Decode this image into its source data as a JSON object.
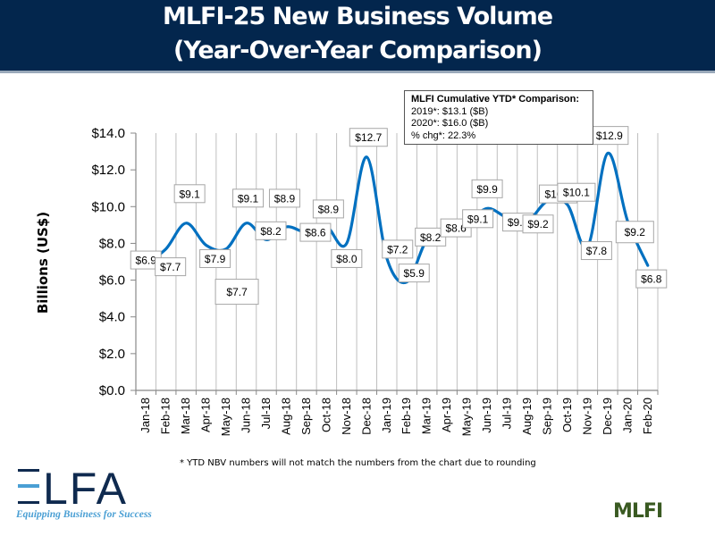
{
  "header": {
    "title_line1": "MLFI-25 New Business Volume",
    "title_line2": "(Year-Over-Year Comparison)"
  },
  "ytd_box": {
    "title": "MLFI Cumulative YTD* Comparison:",
    "line1": "2019*: $13.1 ($B)",
    "line2": "2020*: $16.0 ($B)",
    "line3": "% chg*:  22.3%"
  },
  "footnote": "*  YTD NBV numbers will not match the numbers from the chart due to rounding",
  "logos": {
    "elfa_name": "ELFA",
    "elfa_tagline": "Equipping Business for Success",
    "mlfi_name": "MLFI"
  },
  "colors": {
    "header_bg": "#03264d",
    "line": "#0070c0",
    "grid": "#bfbfbf",
    "elfa_dark": "#0f2a4f",
    "elfa_light": "#4a9fd4"
  },
  "chart_data": {
    "type": "line",
    "title": "MLFI-25 New Business Volume (Year-Over-Year Comparison)",
    "xlabel": "",
    "ylabel": "Billions (US$)",
    "ylim": [
      0,
      14
    ],
    "yticks": [
      "$0.0",
      "$2.0",
      "$4.0",
      "$6.0",
      "$8.0",
      "$10.0",
      "$12.0",
      "$14.0"
    ],
    "ytick_values": [
      0,
      2,
      4,
      6,
      8,
      10,
      12,
      14
    ],
    "grid": "vertical",
    "smooth": true,
    "categories": [
      "Jan-18",
      "Feb-18",
      "Mar-18",
      "Apr-18",
      "May-18",
      "Jun-18",
      "Jul-18",
      "Aug-18",
      "Sep-18",
      "Oct-18",
      "Nov-18",
      "Dec-18",
      "Jan-19",
      "Feb-19",
      "Mar-19",
      "Apr-19",
      "May-19",
      "Jun-19",
      "Jul-19",
      "Aug-19",
      "Sep-19",
      "Oct-19",
      "Nov-19",
      "Dec-19",
      "Jan-20",
      "Feb-20"
    ],
    "series": [
      {
        "name": "New Business Volume",
        "values": [
          6.9,
          7.7,
          9.1,
          7.9,
          7.7,
          9.1,
          8.2,
          8.9,
          8.6,
          8.9,
          8.0,
          12.7,
          7.2,
          5.9,
          8.2,
          8.6,
          9.1,
          9.9,
          9.4,
          9.2,
          10.3,
          10.1,
          7.8,
          12.9,
          9.2,
          6.8
        ],
        "data_labels": [
          "$6.9",
          "$7.7",
          "$9.1",
          "$7.9",
          "$7.7",
          "$9.1",
          "$8.2",
          "$8.9",
          "$8.6",
          "$8.9",
          "$8.0",
          "$12.7",
          "$7.2",
          "$5.9",
          "$8.2",
          "$8.6",
          "$9.1",
          "$9.9",
          "$9.4",
          "$9.2",
          "$10.3",
          "$10.1",
          "$7.8",
          "$12.9",
          "$9.2",
          "$6.8"
        ]
      }
    ]
  }
}
